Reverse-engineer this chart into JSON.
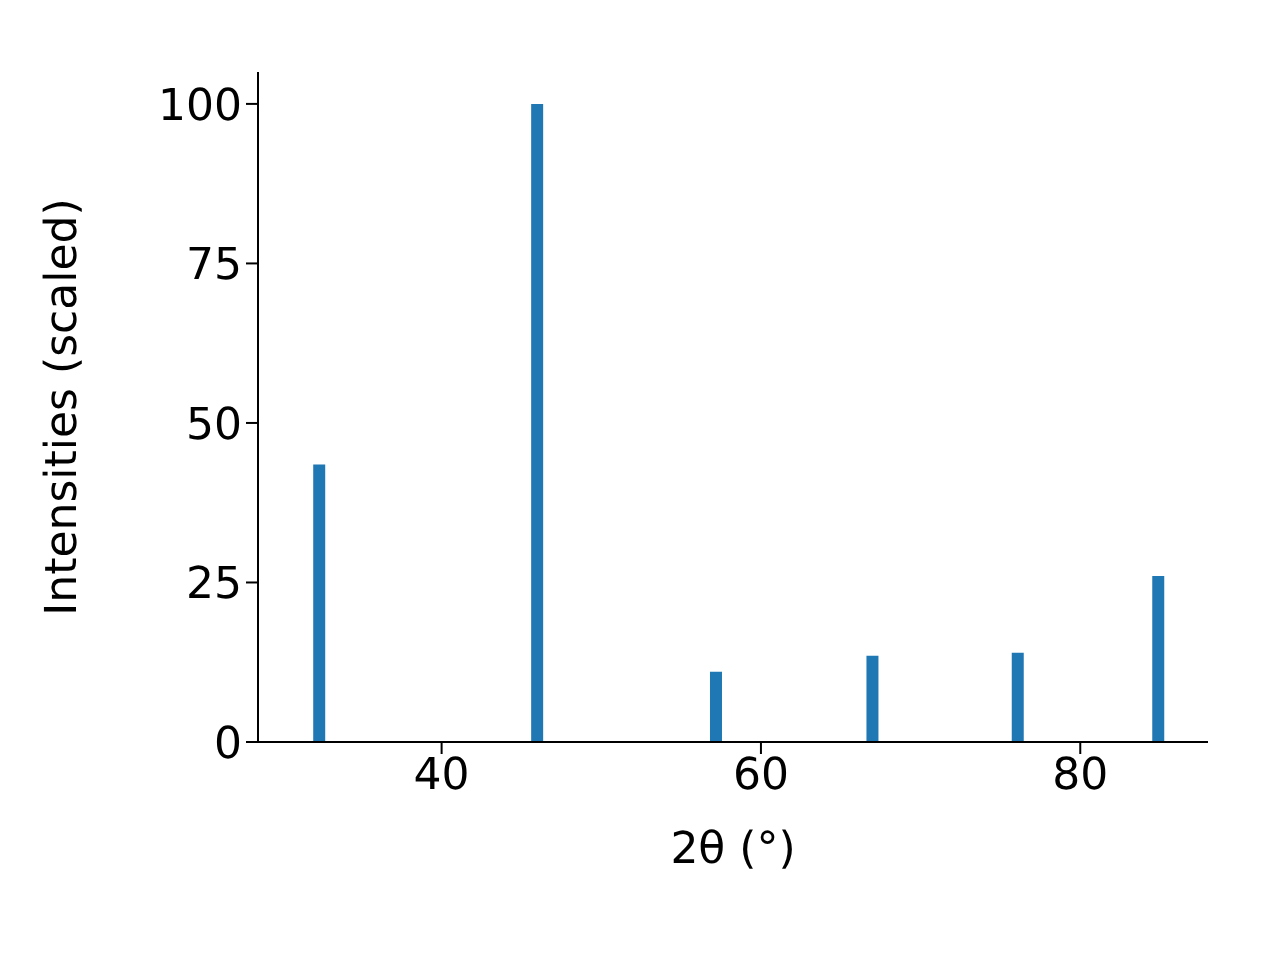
{
  "chart_data": {
    "type": "bar",
    "xlabel": "2θ (°)",
    "ylabel": "Intensities (scaled)",
    "x": [
      32.35,
      46.0,
      57.2,
      67.0,
      76.1,
      84.9
    ],
    "values": [
      43.5,
      100,
      11,
      13.5,
      14,
      26
    ],
    "color": "#1f77b4",
    "xlim": [
      28.5,
      88
    ],
    "xticks": [
      40,
      60,
      80
    ],
    "ylim": [
      0,
      105
    ],
    "yticks": [
      0,
      25,
      50,
      75,
      100
    ],
    "grid": false,
    "legend": false
  }
}
